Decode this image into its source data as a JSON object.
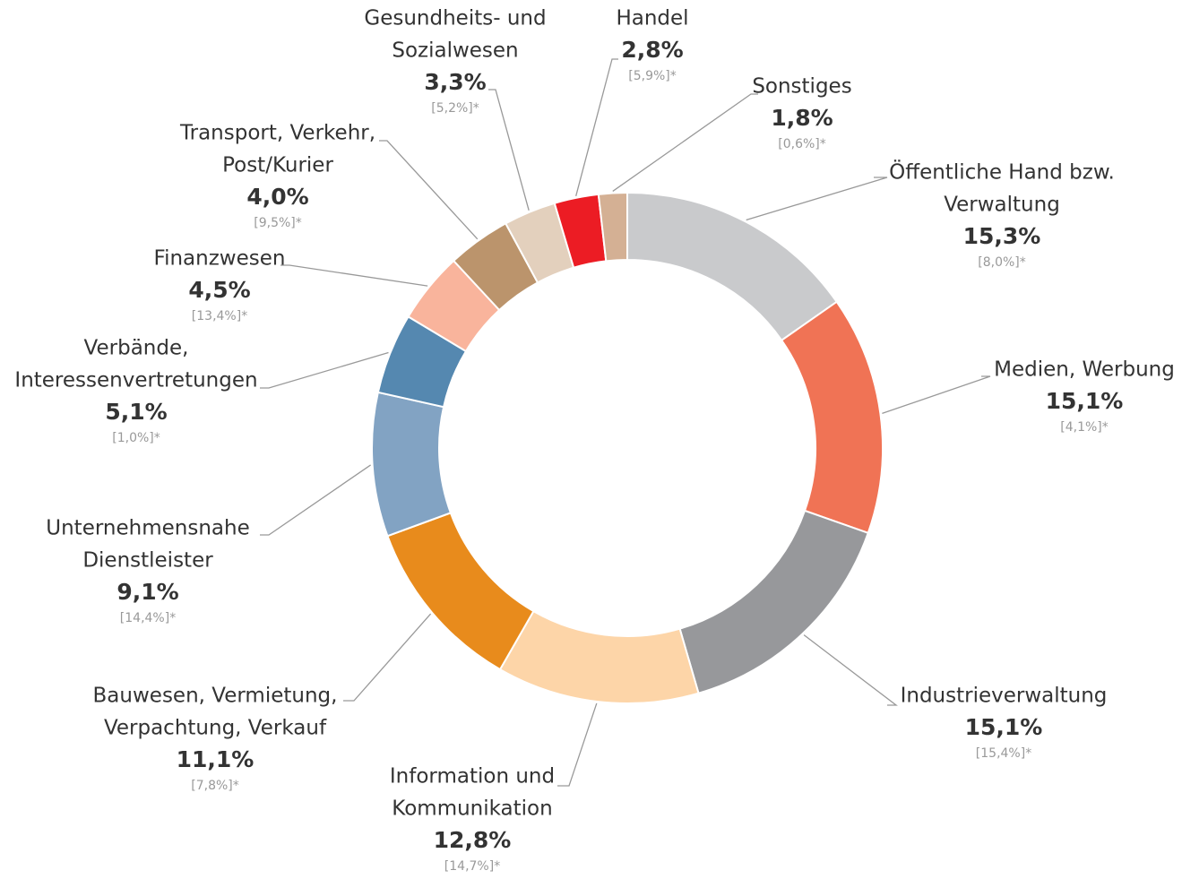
{
  "chart_data": {
    "type": "donut",
    "categories": [
      [
        "Öffentliche Hand bzw.",
        "Verwaltung"
      ],
      [
        "Medien, Werbung"
      ],
      [
        "Industrieverwaltung"
      ],
      [
        "Information und",
        "Kommunikation"
      ],
      [
        "Bauwesen, Vermietung,",
        "Verpachtung, Verkauf"
      ],
      [
        "Unternehmensnahe",
        "Dienstleister"
      ],
      [
        "Verbände,",
        "Interessenvertretungen"
      ],
      [
        "Finanzwesen"
      ],
      [
        "Transport, Verkehr,",
        "Post/Kurier"
      ],
      [
        "Gesundheits- und",
        "Sozialwesen"
      ],
      [
        "Handel"
      ],
      [
        "Sonstiges"
      ]
    ],
    "values": [
      15.3,
      15.1,
      15.1,
      12.8,
      11.1,
      9.1,
      5.1,
      4.5,
      4.0,
      3.3,
      2.8,
      1.8
    ],
    "value_labels": [
      "15,3%",
      "15,1%",
      "15,1%",
      "12,8%",
      "11,1%",
      "9,1%",
      "5,1%",
      "4,5%",
      "4,0%",
      "3,3%",
      "2,8%",
      "1,8%"
    ],
    "comparison_labels": [
      "[8,0%]*",
      "[4,1%]*",
      "[15,4%]*",
      "[14,7%]*",
      "[7,8%]*",
      "[14,4%]*",
      "[1,0%]*",
      "[13,4%]*",
      "[9,5%]*",
      "[5,2%]*",
      "[5,9%]*",
      "[0,6%]*"
    ],
    "colors": [
      "#c9cacc",
      "#f07355",
      "#97989b",
      "#fdd5a8",
      "#e88b1c",
      "#82a3c3",
      "#5588b0",
      "#f9b49c",
      "#bb946c",
      "#e3d0bd",
      "#ec1c24",
      "#d4b094"
    ]
  }
}
